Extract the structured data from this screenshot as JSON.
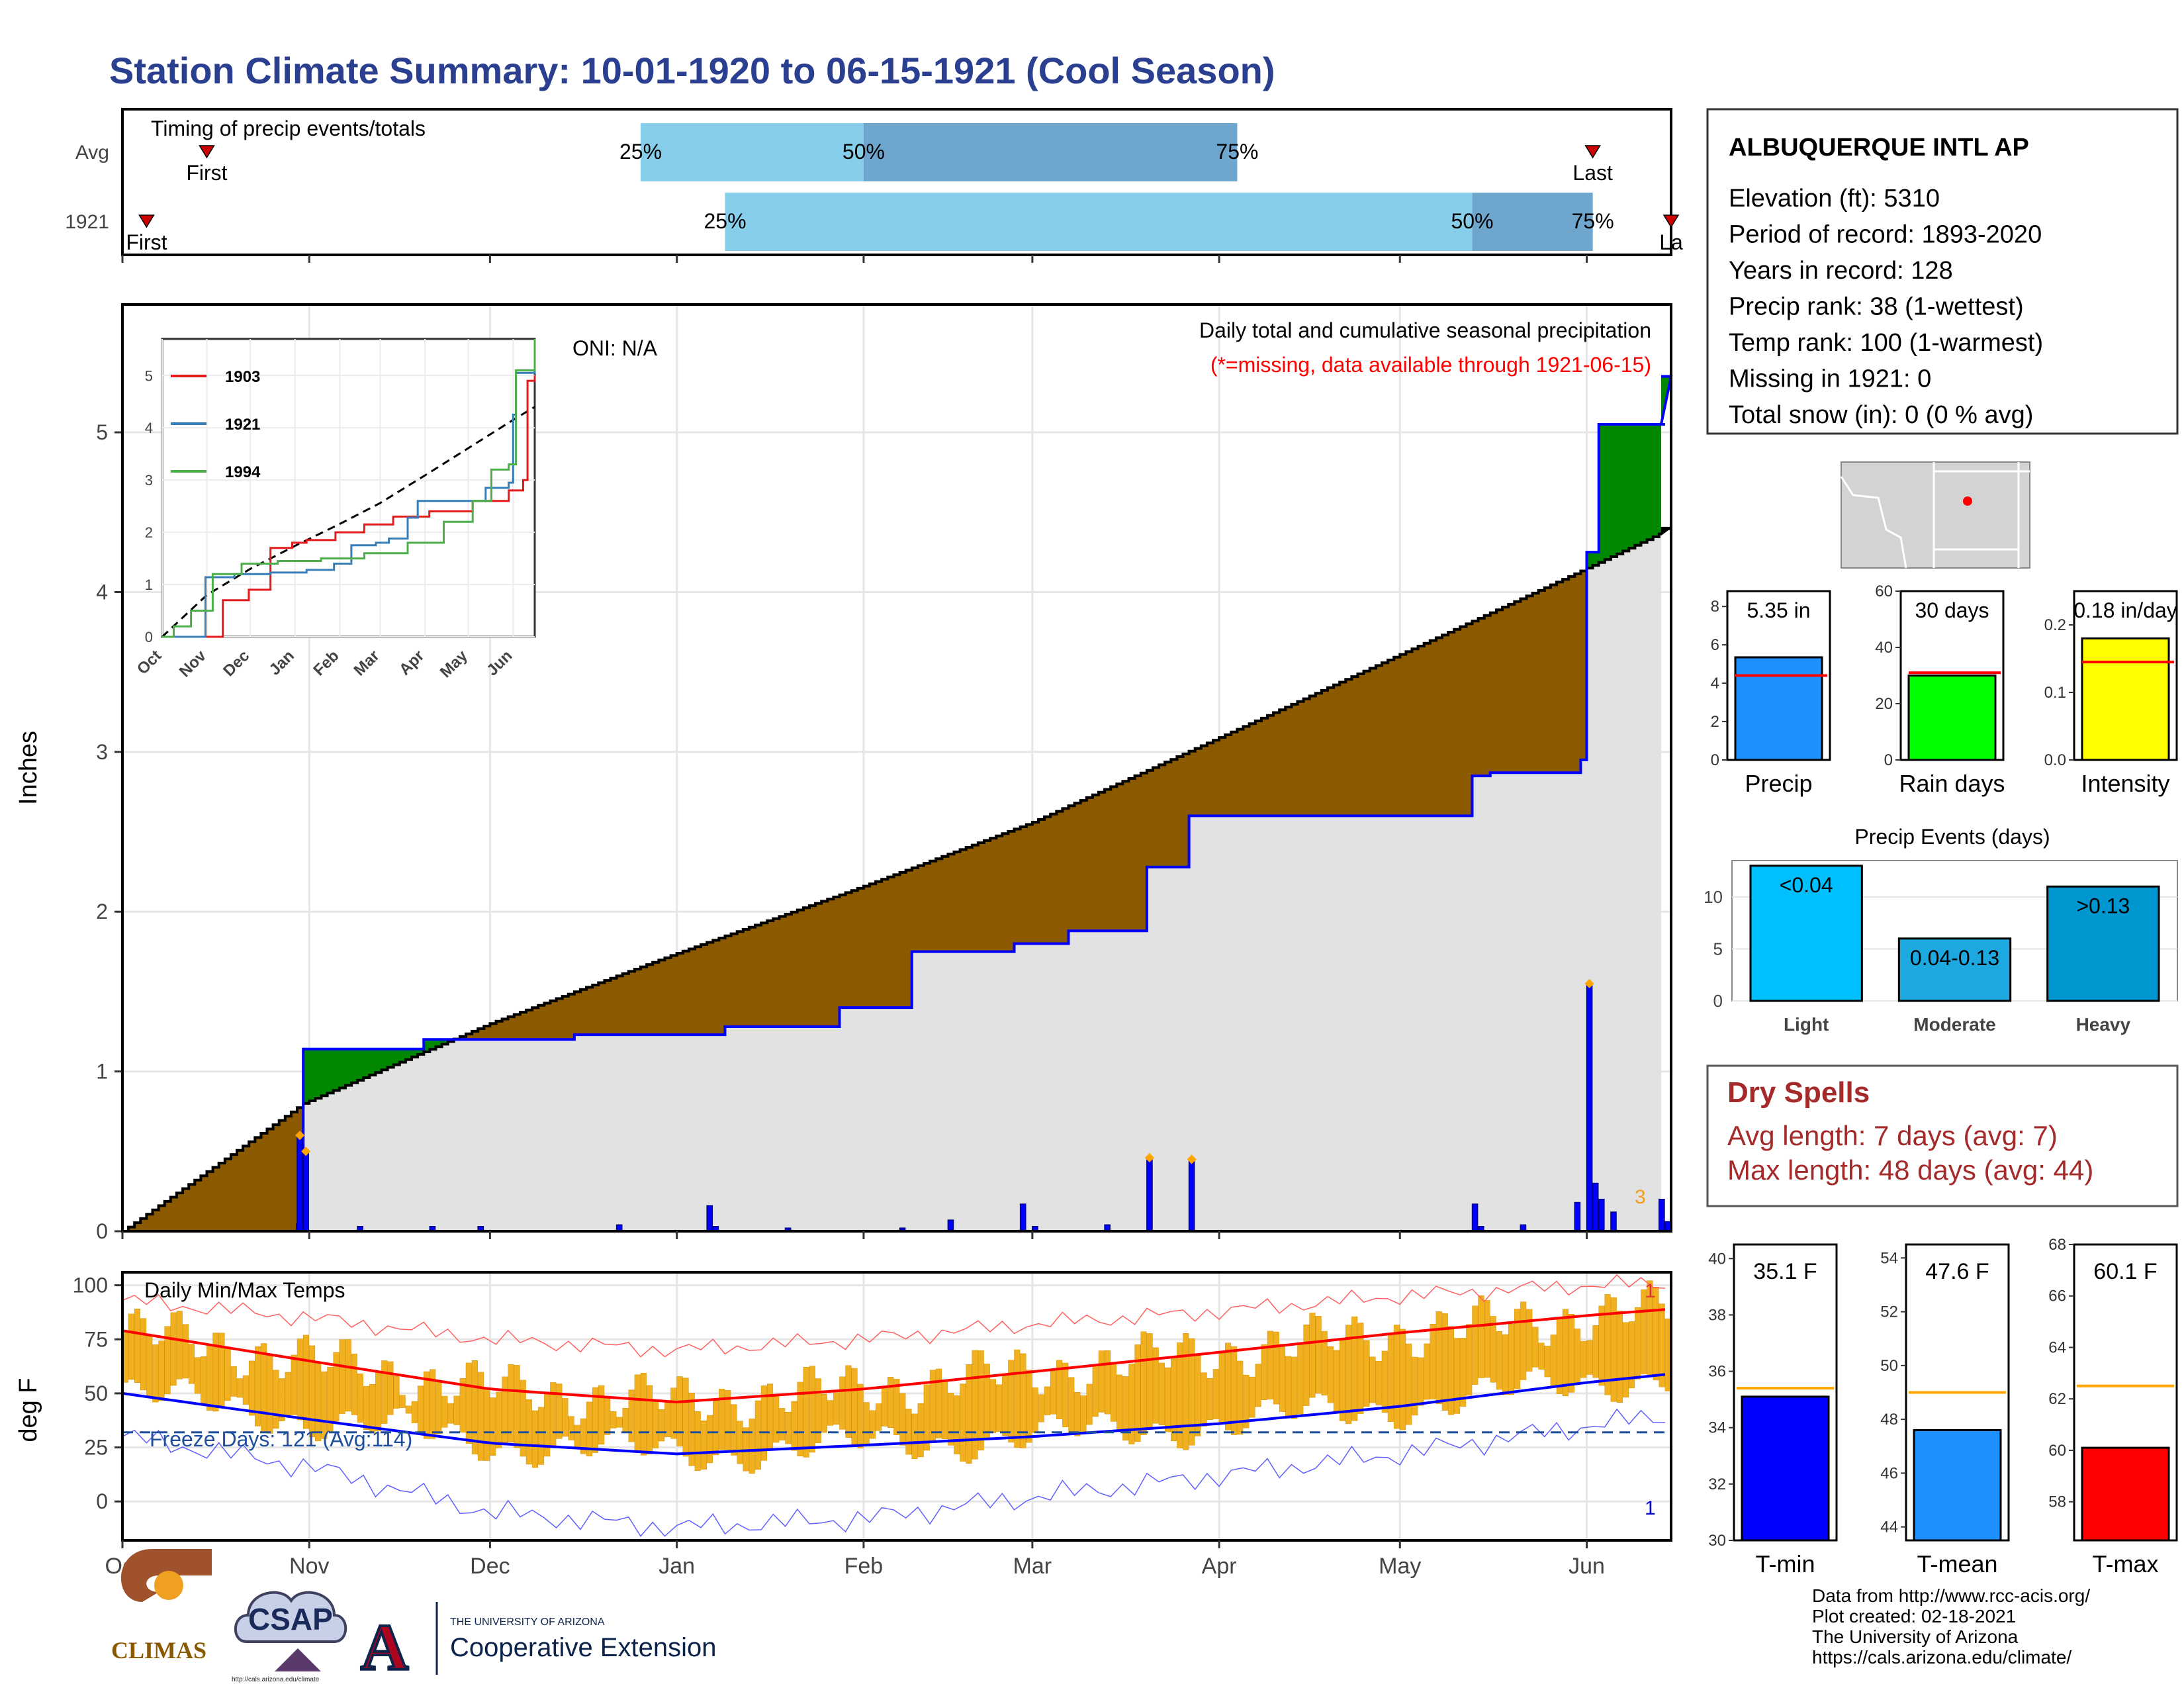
{
  "title": "Station Climate Summary: 10-01-1920 to 06-15-1921 (Cool Season)",
  "colors": {
    "title": "#2a3f8f",
    "brown": "#8b5a00",
    "green": "#008800",
    "gray": "#e2e2e2",
    "blue": "#0000ff",
    "orange": "#f0b020",
    "light_blue": "#87ceeb",
    "mid_blue": "#6ea6cd",
    "red": "#ff0000",
    "dry_red": "#a52a2a"
  },
  "timing": {
    "title": "Timing of precip events/totals",
    "rows": [
      {
        "label": "Avg",
        "first_label": "First",
        "last_label": "Last",
        "p25": "25%",
        "p50": "50%",
        "p75": "75%",
        "first": "1920-10-15",
        "d25": "1920-12-26",
        "d50": "1921-02-01",
        "d75": "1921-04-04",
        "last": "1921-06-02"
      },
      {
        "label": "1921",
        "first_label": "First",
        "last_label": "La",
        "p25": "25%",
        "p50": "50%",
        "p75": "75%",
        "first": "1920-10-05",
        "d25": "1921-01-09",
        "d50": "1921-05-13",
        "d75": "1921-06-02",
        "last": "1921-06-15"
      }
    ]
  },
  "oni": "ONI: N/A",
  "precip_panel": {
    "subtitle": "Daily total and cumulative seasonal precipitation",
    "missing_note": "(*=missing, data available through 1921-06-15)",
    "ylabel": "Inches",
    "yticks": [
      "0",
      "1",
      "2",
      "3",
      "4",
      "5"
    ],
    "ylim": [
      0,
      5.8
    ],
    "corner_count": "3"
  },
  "inset": {
    "yticks": [
      "0",
      "1",
      "2",
      "3",
      "4",
      "5"
    ],
    "months": [
      "Oct",
      "Nov",
      "Dec",
      "Jan",
      "Feb",
      "Mar",
      "Apr",
      "May",
      "Jun"
    ],
    "legend": [
      {
        "name": "1903",
        "color": "#e41a1c"
      },
      {
        "name": "1921",
        "color": "#377eb8"
      },
      {
        "name": "1994",
        "color": "#4daf4a"
      }
    ]
  },
  "temp_panel": {
    "title": "Daily Min/Max Temps",
    "ylabel": "deg F",
    "yticks": [
      "0",
      "25",
      "50",
      "75",
      "100"
    ],
    "ylim": [
      -18,
      106
    ],
    "freeze_label": "Freeze Days: 121 (Avg:114)",
    "record_high_count": "1",
    "record_low_count": "1"
  },
  "xaxis_months": [
    "Oct",
    "Nov",
    "Dec",
    "Jan",
    "Feb",
    "Mar",
    "Apr",
    "May",
    "Jun"
  ],
  "station": {
    "name": "ALBUQUERQUE INTL AP",
    "lines": [
      "Elevation (ft): 5310",
      "Period of record: 1893-2020",
      "Years in record: 128",
      "Precip rank: 38 (1-wettest)",
      "Temp rank: 100 (1-warmest)",
      "Missing in 1921: 0",
      "Total snow (in): 0 (0 % avg)"
    ]
  },
  "summary_bars": [
    {
      "id": "precip",
      "label": "Precip",
      "value_label": "5.35 in",
      "value": 5.35,
      "avg": 4.4,
      "ymax": 8.8,
      "ticks": [
        "0",
        "2",
        "4",
        "6",
        "8"
      ],
      "color": "#1e90ff"
    },
    {
      "id": "raindays",
      "label": "Rain days",
      "value_label": "30 days",
      "value": 30,
      "avg": 31,
      "ymax": 60,
      "ticks": [
        "0",
        "20",
        "40",
        "60"
      ],
      "color": "#00ff00"
    },
    {
      "id": "intensity",
      "label": "Intensity",
      "value_label": "0.18 in/day",
      "value": 0.18,
      "avg": 0.145,
      "ymax": 0.25,
      "ticks": [
        "0.0",
        "0.1",
        "0.2"
      ],
      "color": "#ffff00"
    }
  ],
  "events": {
    "title": "Precip Events (days)",
    "yticks": [
      "0",
      "5",
      "10"
    ],
    "bars": [
      {
        "name": "Light",
        "label": "<0.04",
        "value": 13,
        "color": "#00bfff"
      },
      {
        "name": "Moderate",
        "label": "0.04-0.13",
        "value": 6,
        "color": "#1ea8e0"
      },
      {
        "name": "Heavy",
        "label": ">0.13",
        "value": 11,
        "color": "#0096cf"
      }
    ]
  },
  "dry_spells": {
    "title": "Dry Spells",
    "avg": "Avg length: 7 days (avg: 7)",
    "max": "Max length: 48 days (avg: 44)"
  },
  "temp_bars": [
    {
      "id": "tmin",
      "label": "T-min",
      "value_label": "35.1 F",
      "value": 35.1,
      "avg": 35.4,
      "ymin": 30,
      "ymax": 40.5,
      "ticks": [
        "30",
        "32",
        "34",
        "36",
        "38",
        "40"
      ],
      "color": "#0000ff"
    },
    {
      "id": "tmean",
      "label": "T-mean",
      "value_label": "47.6 F",
      "value": 47.6,
      "avg": 49.0,
      "ymin": 43.5,
      "ymax": 54.5,
      "ticks": [
        "44",
        "46",
        "48",
        "50",
        "52",
        "54"
      ],
      "color": "#1e90ff"
    },
    {
      "id": "tmax",
      "label": "T-max",
      "value_label": "60.1 F",
      "value": 60.1,
      "avg": 62.5,
      "ymin": 56.5,
      "ymax": 68,
      "ticks": [
        "58",
        "60",
        "62",
        "64",
        "66",
        "68"
      ],
      "color": "#ff0000"
    }
  ],
  "credits": [
    "Data from http://www.rcc-acis.org/",
    "Plot created: 02-18-2021",
    "The University of Arizona",
    "https://cals.arizona.edu/climate/"
  ],
  "logos": {
    "climas": "CLIMAS",
    "csap": "CSAP",
    "csap_url": "http://cals.arizona.edu/climate",
    "ua_small": "THE UNIVERSITY OF ARIZONA",
    "coop": "Cooperative Extension",
    "ua_letter": "A"
  },
  "chart_data": {
    "type": "area",
    "title": "Daily total and cumulative seasonal precipitation",
    "ylabel": "Inches",
    "ylim": [
      0,
      5.8
    ],
    "x_range": [
      "1920-10-01",
      "1921-06-15"
    ],
    "series": [
      {
        "name": "cumulative_1921",
        "x": [
          "1920-10-01",
          "1920-10-30",
          "1920-10-31",
          "1920-11-20",
          "1920-12-15",
          "1921-01-09",
          "1921-01-28",
          "1921-02-09",
          "1921-02-26",
          "1921-03-07",
          "1921-03-20",
          "1921-03-27",
          "1921-05-13",
          "1921-05-16",
          "1921-05-31",
          "1921-06-01",
          "1921-06-03",
          "1921-06-15"
        ],
        "values": [
          0,
          0.04,
          1.14,
          1.2,
          1.23,
          1.28,
          1.4,
          1.75,
          1.8,
          1.88,
          2.28,
          2.6,
          2.85,
          2.87,
          2.95,
          4.25,
          5.05,
          5.35
        ]
      },
      {
        "name": "normal_cumulative",
        "x": [
          "1920-10-01",
          "1920-10-31",
          "1920-12-01",
          "1921-01-01",
          "1921-02-01",
          "1921-03-01",
          "1921-04-01",
          "1921-05-01",
          "1921-06-01",
          "1921-06-15"
        ],
        "values": [
          0,
          0.8,
          1.3,
          1.74,
          2.16,
          2.56,
          3.09,
          3.61,
          4.15,
          4.4
        ]
      },
      {
        "name": "daily_precip",
        "x": [
          "1920-10-30",
          "1920-10-31",
          "1920-11-09",
          "1920-11-21",
          "1920-11-29",
          "1920-12-22",
          "1921-01-06",
          "1921-01-07",
          "1921-01-19",
          "1921-02-07",
          "1921-02-15",
          "1921-02-27",
          "1921-03-01",
          "1921-03-13",
          "1921-03-20",
          "1921-03-27",
          "1921-05-13",
          "1921-05-14",
          "1921-05-21",
          "1921-05-30",
          "1921-06-01",
          "1921-06-02",
          "1921-06-03",
          "1921-06-05",
          "1921-06-13",
          "1921-06-14"
        ],
        "values": [
          0.6,
          0.5,
          0.03,
          0.03,
          0.03,
          0.04,
          0.16,
          0.03,
          0.02,
          0.02,
          0.07,
          0.17,
          0.03,
          0.04,
          0.46,
          0.45,
          0.17,
          0.03,
          0.04,
          0.18,
          1.55,
          0.3,
          0.2,
          0.12,
          0.2,
          0.06
        ]
      },
      {
        "name": "Tmax_normal",
        "x": [
          "10-01",
          "11-01",
          "12-01",
          "01-01",
          "02-01",
          "03-01",
          "04-01",
          "05-01",
          "06-01",
          "06-15"
        ],
        "values": [
          79,
          65,
          52,
          46,
          52,
          60,
          69,
          78,
          86,
          89
        ]
      },
      {
        "name": "Tmin_normal",
        "x": [
          "10-01",
          "11-01",
          "12-01",
          "01-01",
          "02-01",
          "03-01",
          "04-01",
          "05-01",
          "06-01",
          "06-15"
        ],
        "values": [
          50,
          38,
          27,
          22,
          26,
          30,
          36,
          44,
          55,
          59
        ]
      },
      {
        "name": "Tmax_record",
        "x": [
          "10-01",
          "11-01",
          "12-01",
          "01-01",
          "02-01",
          "03-01",
          "04-01",
          "05-01",
          "06-01",
          "06-15"
        ],
        "values": [
          93,
          85,
          75,
          70,
          75,
          82,
          88,
          95,
          100,
          101
        ]
      },
      {
        "name": "Tmin_record",
        "x": [
          "10-01",
          "11-01",
          "12-01",
          "01-01",
          "02-01",
          "03-01",
          "04-01",
          "05-01",
          "06-01",
          "06-15"
        ],
        "values": [
          30,
          16,
          -5,
          -12,
          -8,
          2,
          12,
          22,
          35,
          40
        ]
      }
    ],
    "freeze_line": 32
  }
}
